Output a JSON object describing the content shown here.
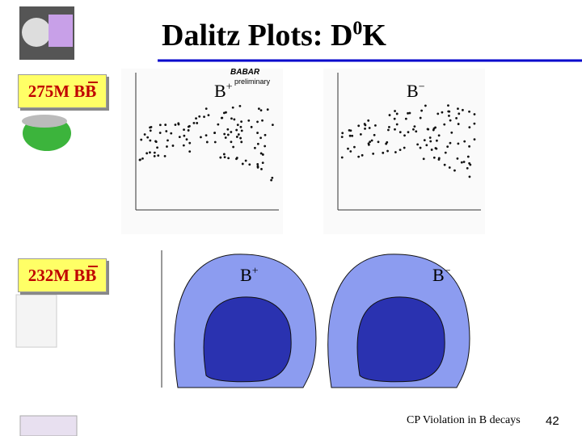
{
  "title": {
    "text": "Dalitz Plots: D",
    "sup": "0",
    "after": "K"
  },
  "samples": [
    {
      "label": "275M BB",
      "plots": [
        {
          "base": "B",
          "sup": "+"
        },
        {
          "base": "B",
          "sup": "−"
        }
      ],
      "brand": "BABAR",
      "note": "preliminary"
    },
    {
      "label": "232M BB",
      "plots": [
        {
          "base": "B",
          "sup": "+"
        },
        {
          "base": "B",
          "sup": "−"
        }
      ]
    }
  ],
  "footer": {
    "text": "CP Violation in B decays",
    "page": "42"
  }
}
